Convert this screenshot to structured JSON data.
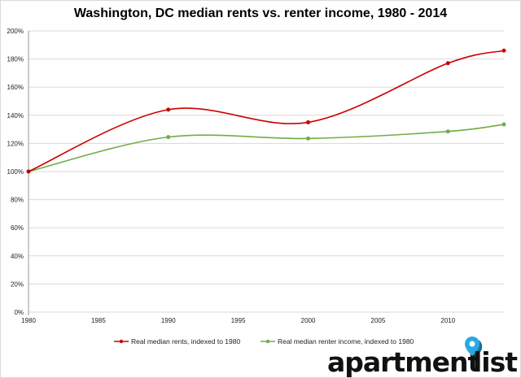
{
  "chart_data": {
    "type": "line",
    "title": "Washington, DC median rents vs. renter income, 1980 - 2014",
    "xlabel": "",
    "ylabel": "",
    "x": [
      1980,
      1990,
      2000,
      2010,
      2014
    ],
    "xlim": [
      1980,
      2014
    ],
    "ylim": [
      0,
      200
    ],
    "xticks": [
      "1980",
      "1985",
      "1990",
      "1995",
      "2000",
      "2005",
      "2010"
    ],
    "yticks": [
      "0%",
      "20%",
      "40%",
      "60%",
      "80%",
      "100%",
      "120%",
      "140%",
      "160%",
      "180%",
      "200%"
    ],
    "grid": true,
    "legend_position": "bottom",
    "series": [
      {
        "name": "Real median rents, indexed to 1980",
        "color": "#cc0000",
        "values": [
          100,
          144,
          135,
          177,
          186
        ]
      },
      {
        "name": "Real median renter income, indexed to 1980",
        "color": "#70ad47",
        "values": [
          100,
          124.5,
          123.5,
          128.5,
          133.5
        ]
      }
    ]
  },
  "logo": {
    "word1": "apartment",
    "word2": "list",
    "pin_colors": [
      "#29a9e1",
      "#1b6f94"
    ]
  }
}
